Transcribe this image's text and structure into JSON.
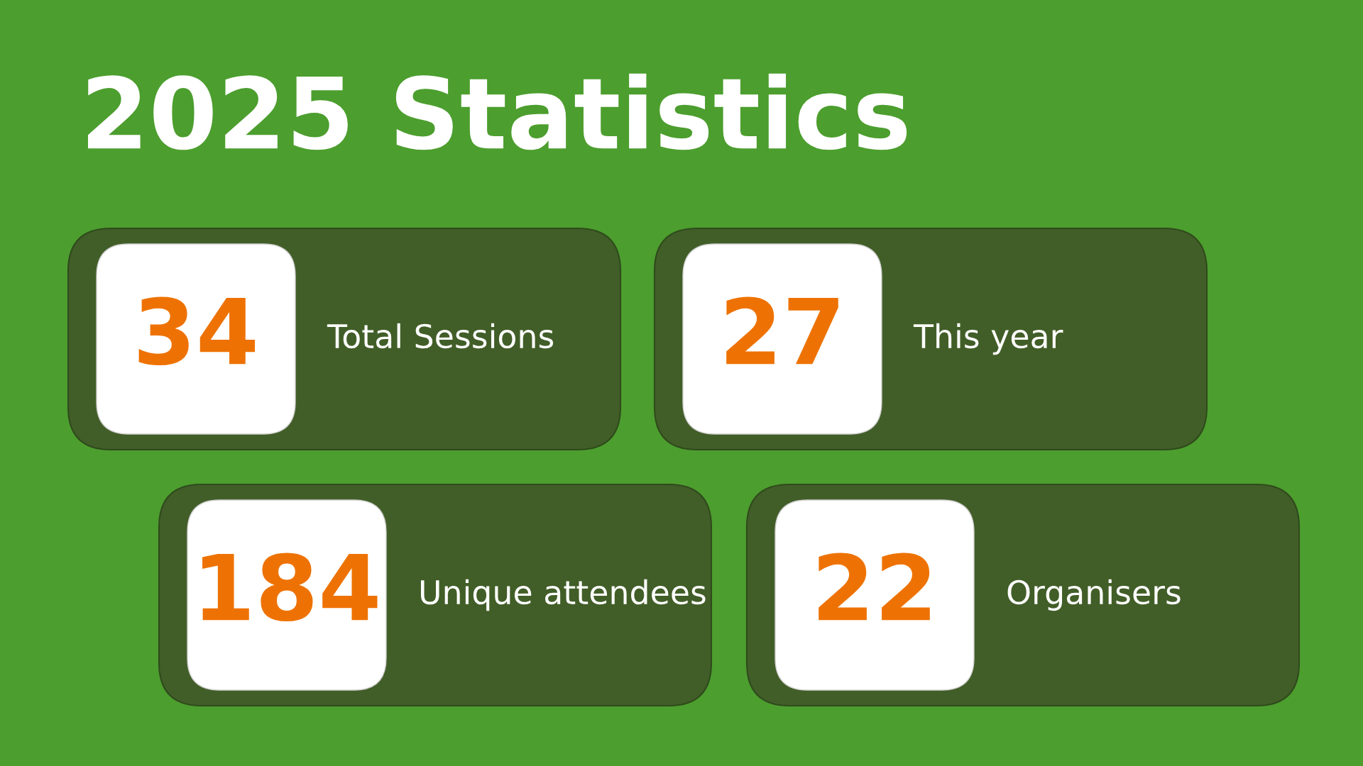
{
  "chart_data": {
    "type": "other",
    "title": "2025 Statistics",
    "categories": [
      "Total Sessions",
      "This year",
      "Unique attendees",
      "Organisers"
    ],
    "values": [
      34,
      27,
      184,
      22
    ],
    "data_labels": true
  }
}
